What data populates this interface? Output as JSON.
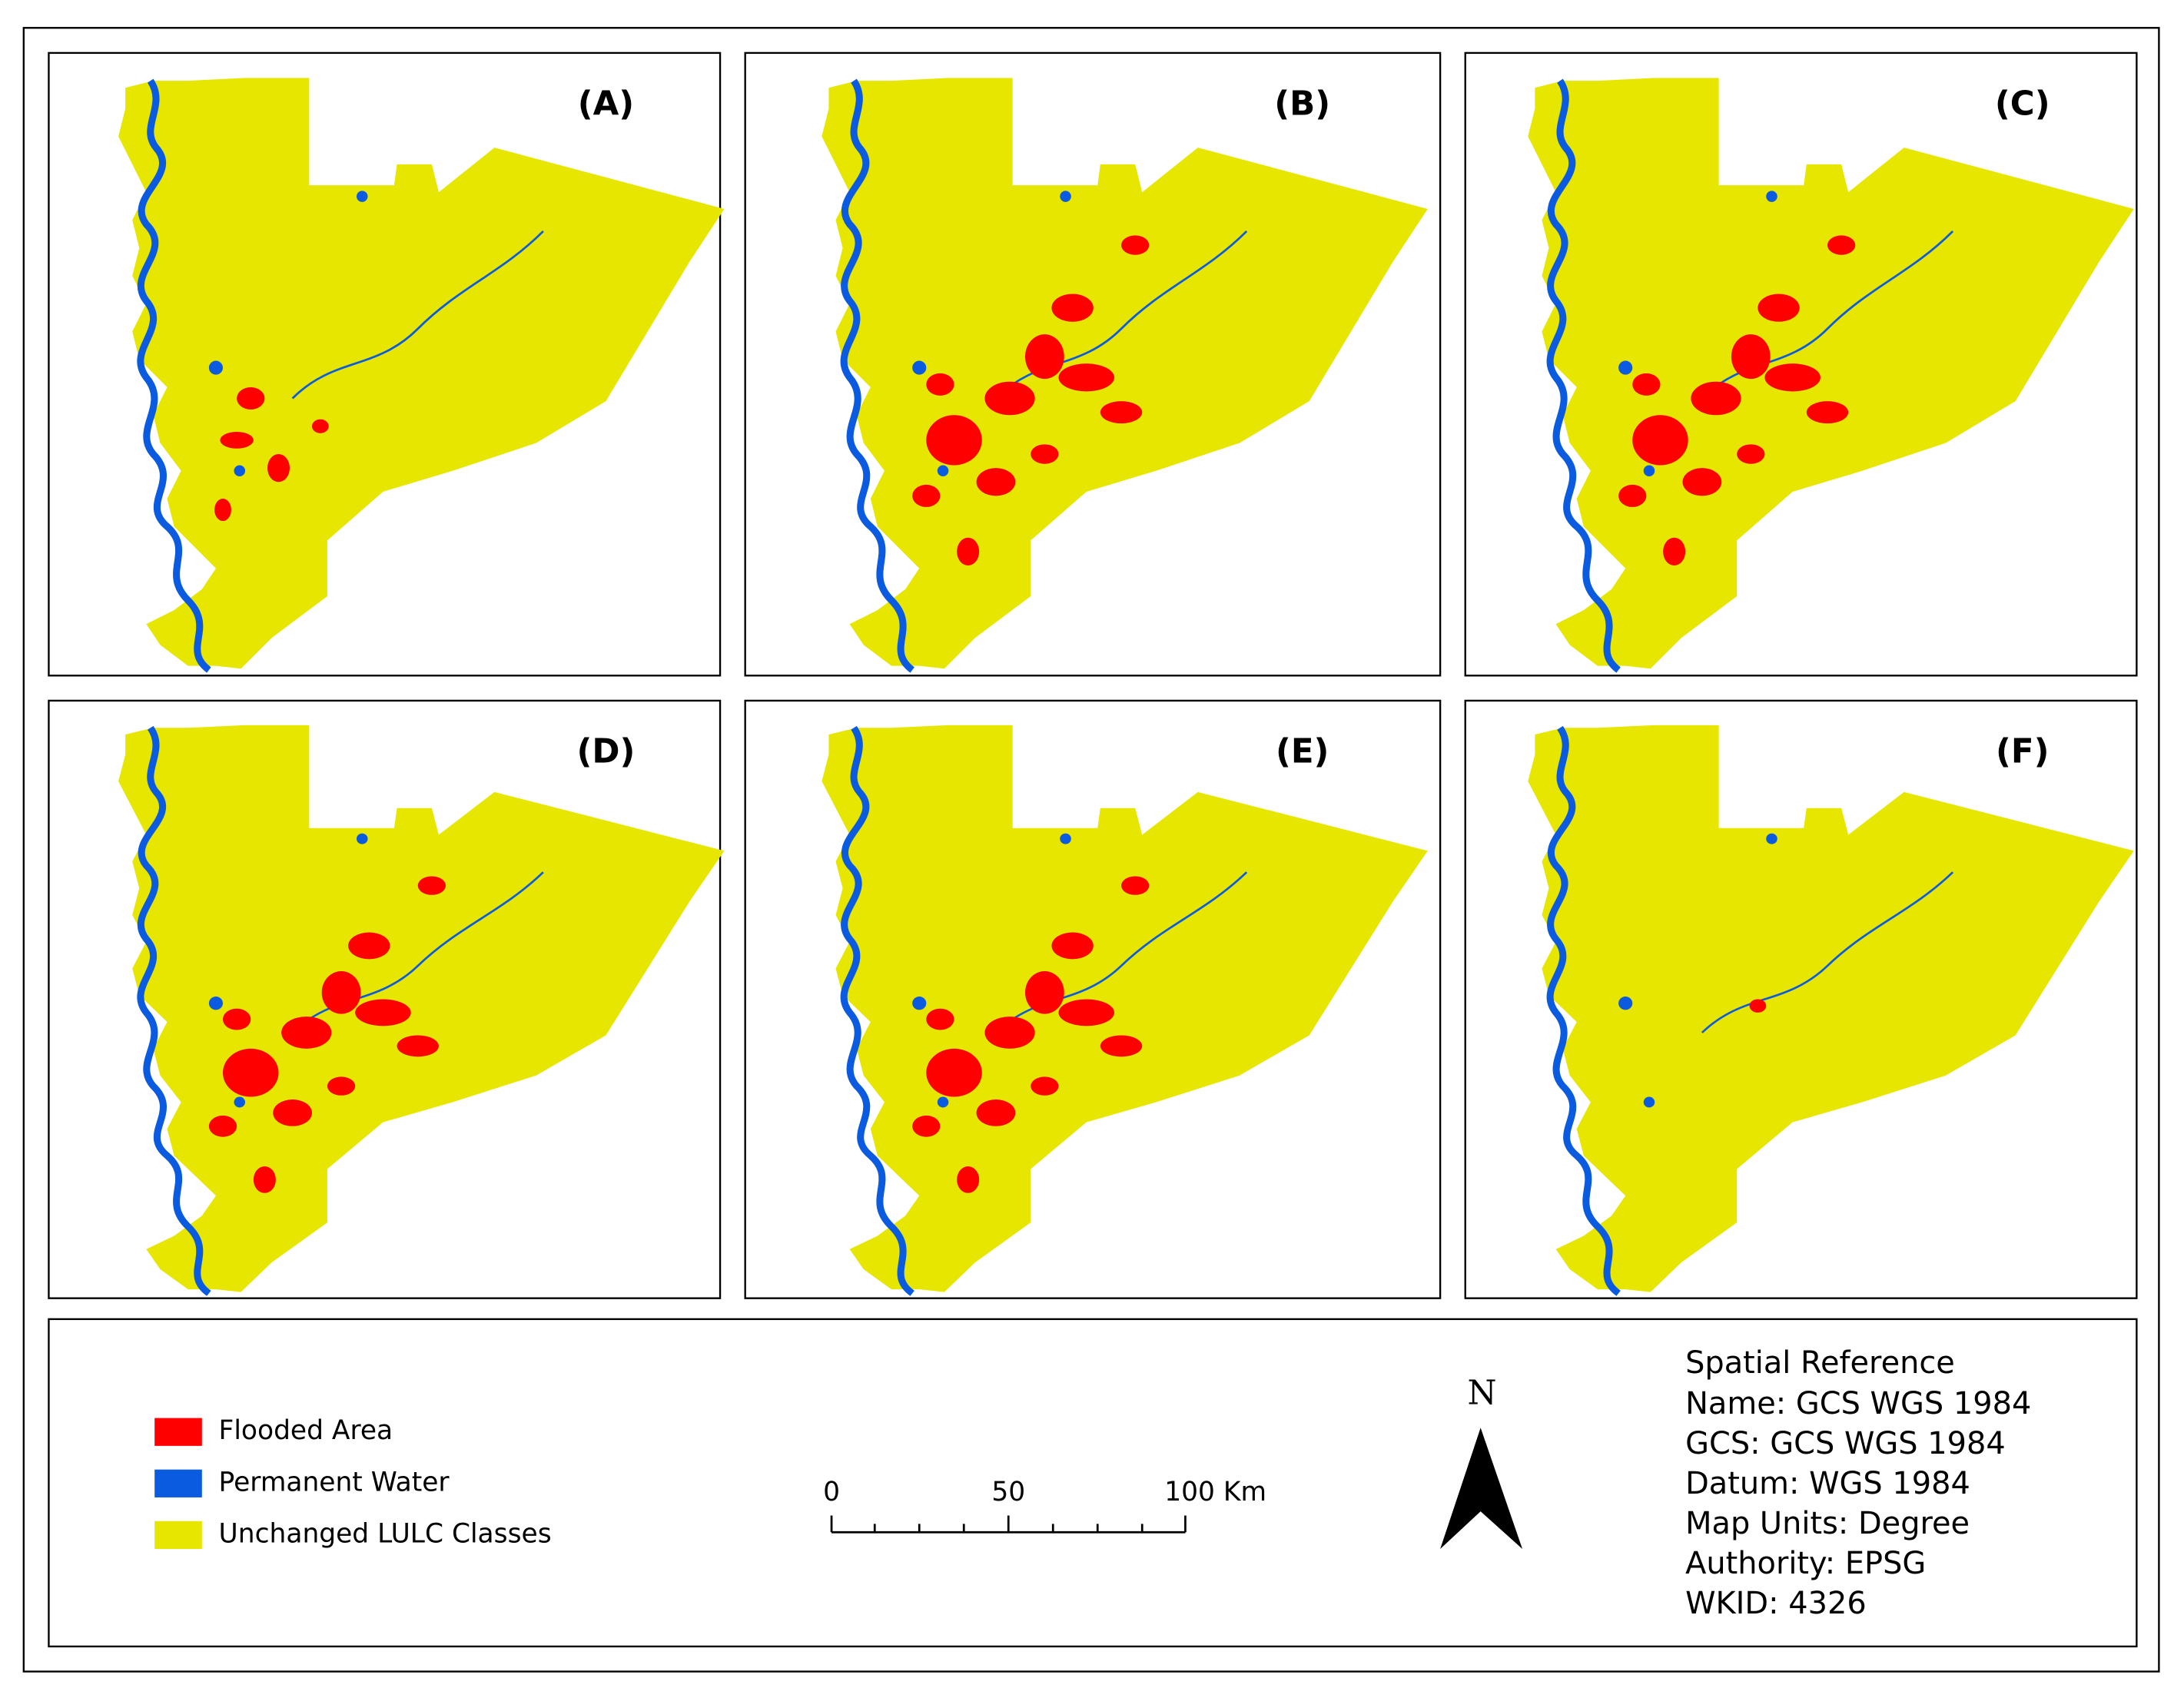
{
  "panels": [
    {
      "label": "(A)"
    },
    {
      "label": "(B)"
    },
    {
      "label": "(C)"
    },
    {
      "label": "(D)"
    },
    {
      "label": "(E)"
    },
    {
      "label": "(F)"
    }
  ],
  "legend": {
    "items": [
      {
        "label": "Flooded Area",
        "color": "#ff0000"
      },
      {
        "label": "Permanent Water",
        "color": "#0a5be0"
      },
      {
        "label": "Unchanged LULC Classes",
        "color": "#e6e600"
      }
    ]
  },
  "scale_bar": {
    "labels": [
      "0",
      "50",
      "100 Km"
    ]
  },
  "north_arrow": {
    "label": "N"
  },
  "spatial_reference": {
    "title": "Spatial Reference",
    "lines": [
      "Name: GCS WGS 1984",
      "GCS: GCS WGS 1984",
      "Datum: WGS 1984",
      "Map Units: Degree",
      "Authority: EPSG",
      "WKID: 4326"
    ]
  }
}
